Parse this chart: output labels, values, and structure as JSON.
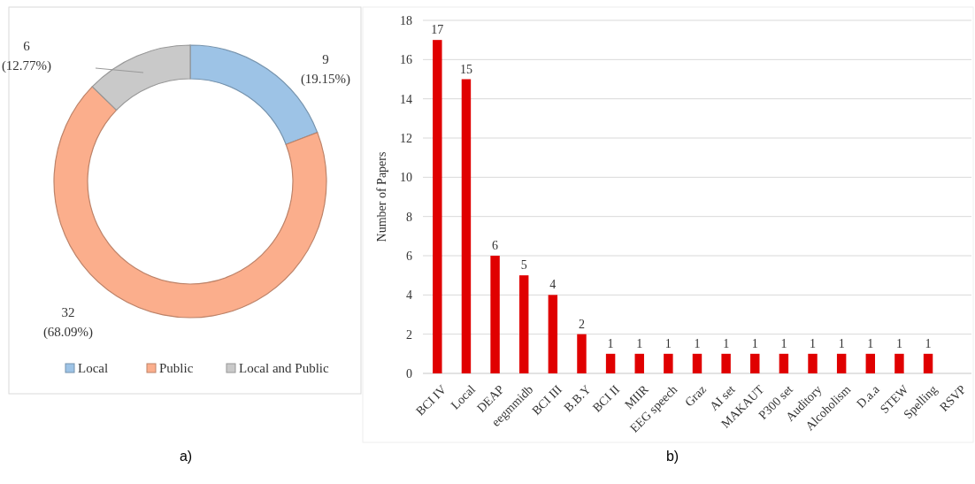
{
  "chart_data": [
    {
      "type": "donut",
      "categories": [
        "Local",
        "Public",
        "Local and Public"
      ],
      "values": [
        9,
        32,
        6
      ],
      "colors": [
        "#9dc3e6",
        "#fbae8c",
        "#c9c9c9"
      ],
      "value_labels": [
        "9\n(19.15%)",
        "32\n(68.09%)",
        "6\n(12.77%)"
      ],
      "legend": "bottom",
      "annotations": [
        "a)"
      ]
    },
    {
      "type": "bar",
      "categories": [
        "BCI IV",
        "Local",
        "DEAP",
        "eegmmidb",
        "BCI III",
        "B.B.Y",
        "BCI II",
        "MIIR",
        "EEG speech",
        "Graz",
        "AI set",
        "MAKAUT",
        "P300 set",
        "Auditory",
        "Alcoholism",
        "D.a.a",
        "STEW",
        "Spelling",
        "RSVP"
      ],
      "values": [
        17,
        15,
        6,
        5,
        4,
        2,
        1,
        1,
        1,
        1,
        1,
        1,
        1,
        1,
        1,
        1,
        1,
        1,
        0
      ],
      "color": "#e00000",
      "value_labels": [
        "17",
        "15",
        "6",
        "5",
        "4",
        "2",
        "1",
        "1",
        "1",
        "1",
        "1",
        "1",
        "1",
        "1",
        "1",
        "1",
        "1",
        "1",
        null
      ],
      "ylabel": "Number of Papers",
      "ylim": [
        0,
        18
      ],
      "yticks": [
        0,
        2,
        4,
        6,
        8,
        10,
        12,
        14,
        16,
        18
      ],
      "grid": "y",
      "annotations": [
        "b)"
      ]
    }
  ]
}
